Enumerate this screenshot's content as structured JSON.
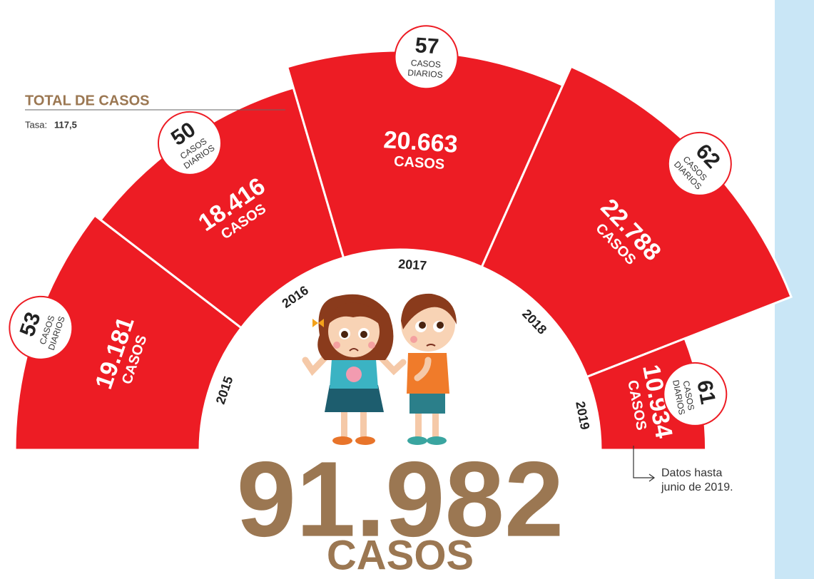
{
  "chart_data": {
    "type": "radial_bar",
    "title": "TOTAL DE CASOS",
    "rate_prefix": "Tasa:",
    "rate": {
      "value": 117.5,
      "label": "117,5"
    },
    "categories": [
      "2015",
      "2016",
      "2017",
      "2018",
      "2019"
    ],
    "values": [
      19181,
      18416,
      20663,
      22788,
      10934
    ],
    "value_labels": [
      "19.181",
      "18.416",
      "20.663",
      "22.788",
      "10.934"
    ],
    "unit": "CASOS",
    "daily": {
      "values": [
        53,
        50,
        57,
        62,
        61
      ],
      "unit": [
        "CASOS",
        "DIARIOS"
      ]
    },
    "color": "#ed1c24",
    "total": 91982,
    "total_label": "91.982",
    "total_unit": "CASOS",
    "total_color": "#9b7752",
    "annotation": [
      "Datos hasta",
      "junio de 2019."
    ]
  }
}
